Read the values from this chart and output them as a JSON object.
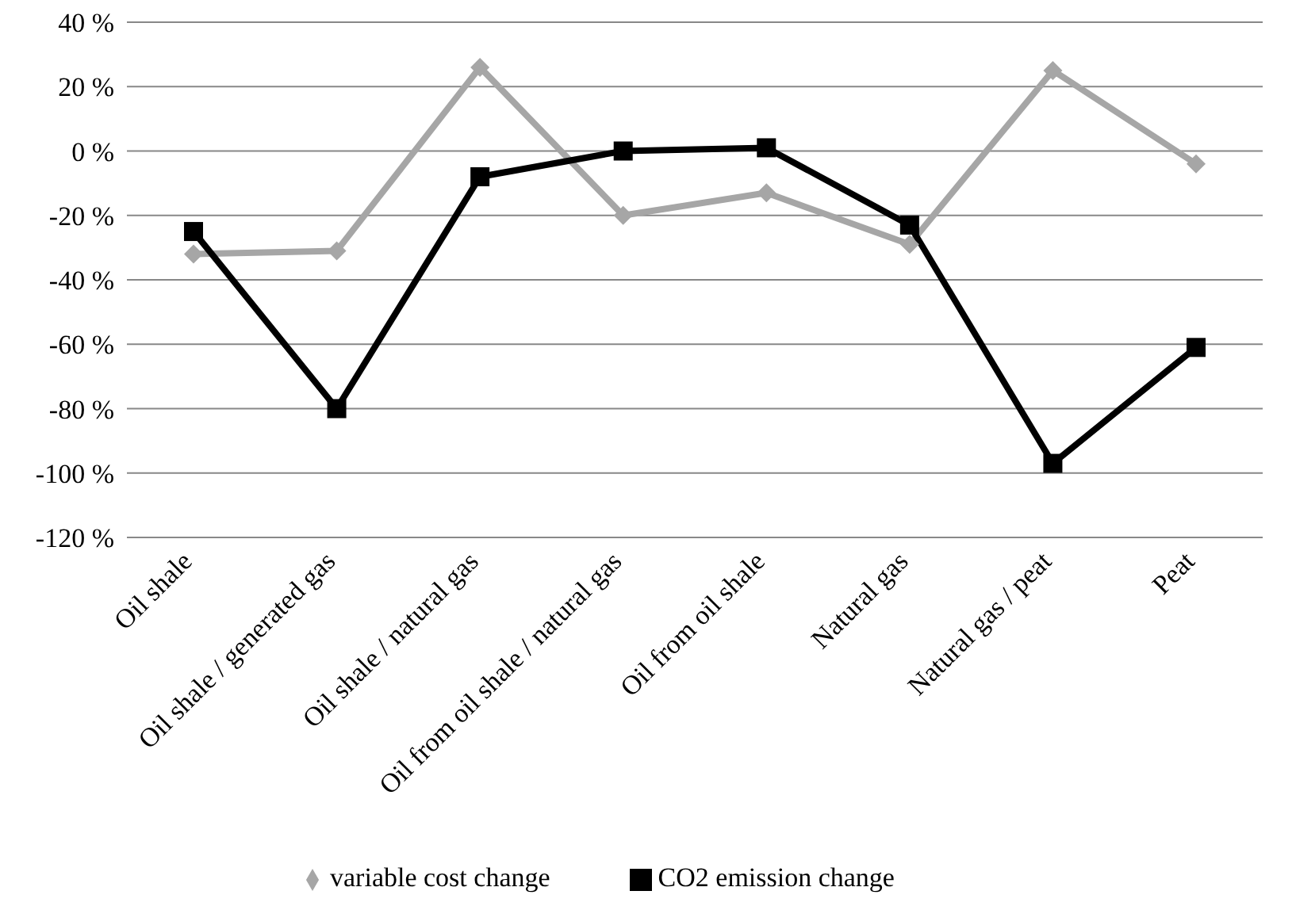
{
  "chart_data": {
    "type": "line",
    "categories": [
      "Oil shale",
      "Oil shale / generated gas",
      "Oil shale / natural gas",
      "Oil from oil shale / natural gas",
      "Oil from oil shale",
      "Natural gas",
      "Natural gas / peat",
      "Peat"
    ],
    "series": [
      {
        "name": "variable cost change",
        "color": "#a6a6a6",
        "marker": "diamond",
        "values": [
          -32,
          -31,
          26,
          -20,
          -13,
          -29,
          25,
          -4
        ]
      },
      {
        "name": "CO2 emission change",
        "color": "#000000",
        "marker": "square",
        "values": [
          -25,
          -80,
          -8,
          0,
          1,
          -23,
          -97,
          -61
        ]
      }
    ],
    "ylim": [
      -120,
      40
    ],
    "yticks": [
      {
        "value": -120,
        "label": "-120 %"
      },
      {
        "value": -100,
        "label": "-100 %"
      },
      {
        "value": -80,
        "label": "-80 %"
      },
      {
        "value": -60,
        "label": "-60 %"
      },
      {
        "value": -40,
        "label": "-40 %"
      },
      {
        "value": -20,
        "label": "-20 %"
      },
      {
        "value": 0,
        "label": "0 %"
      },
      {
        "value": 20,
        "label": "20 %"
      },
      {
        "value": 40,
        "label": "40 %"
      }
    ],
    "grid": "y",
    "legend": "bottom",
    "line_style": "solid"
  }
}
